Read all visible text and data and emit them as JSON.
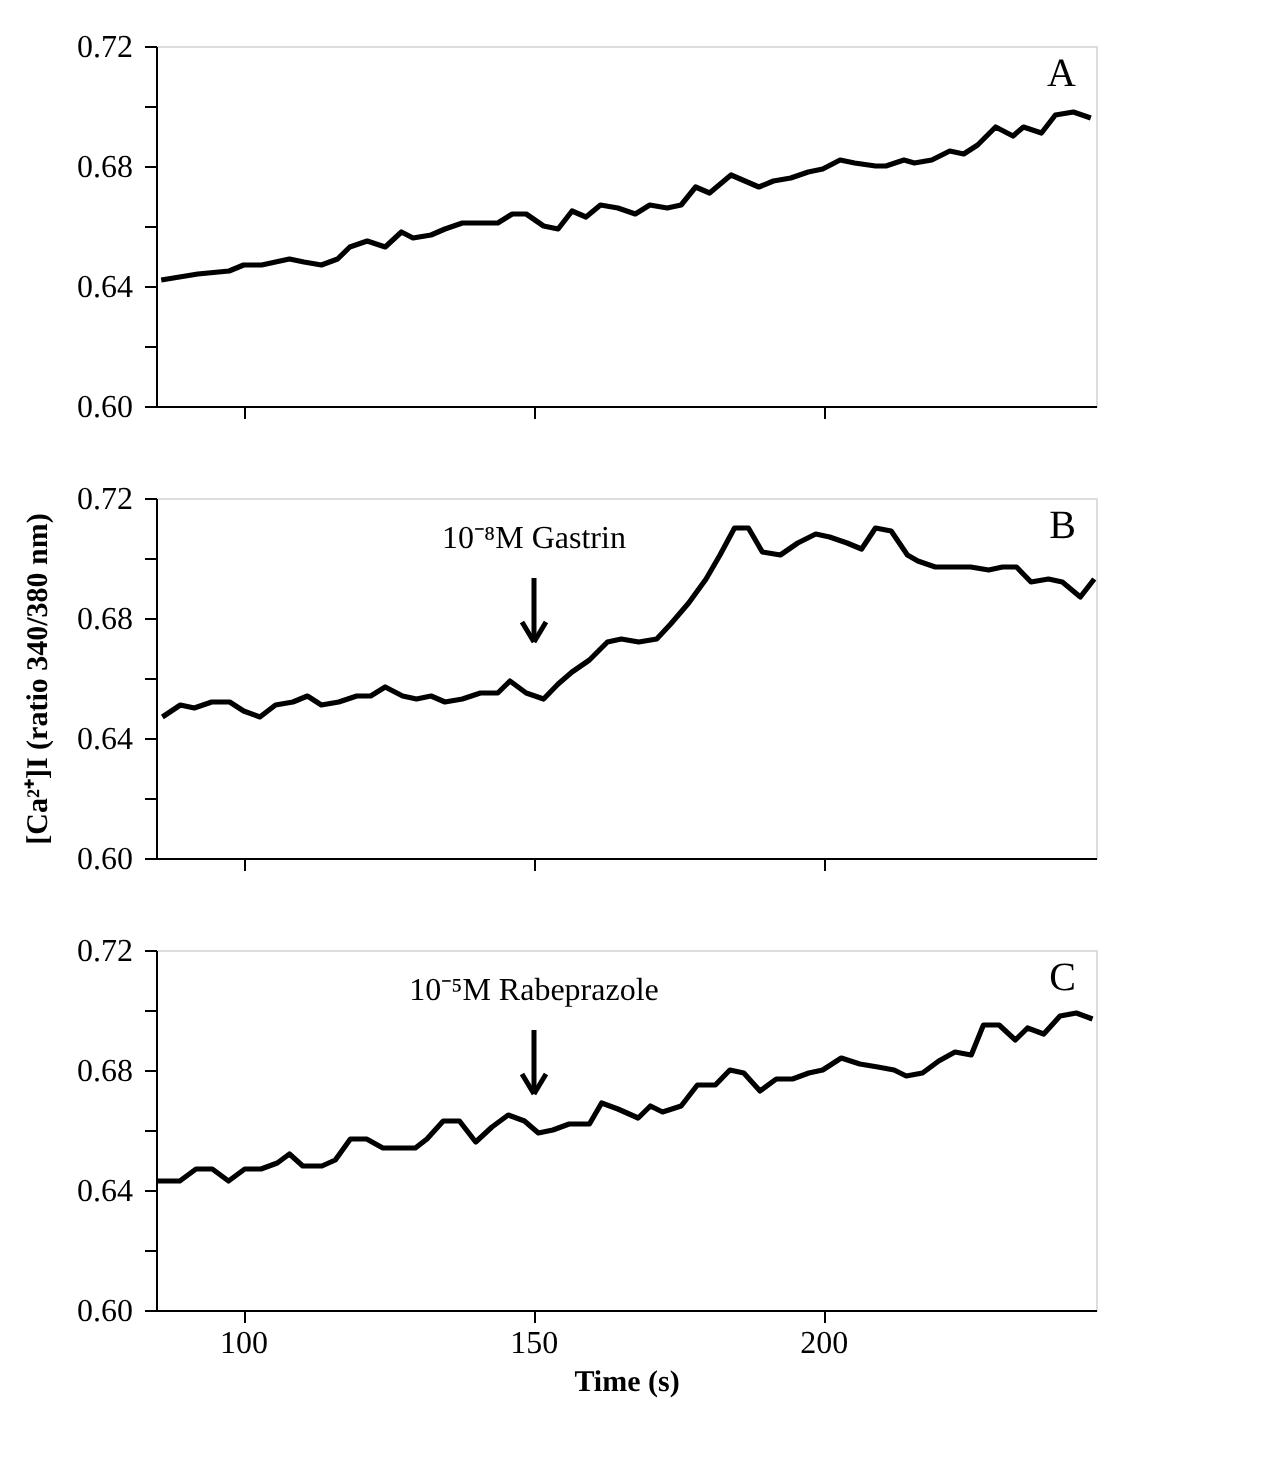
{
  "chart_data": [
    {
      "type": "line",
      "annotations": [
        "A"
      ],
      "xlim": [
        85,
        247
      ],
      "xticks": [
        100,
        150,
        200
      ],
      "ylim": [
        0.6,
        0.72
      ],
      "yticks": [
        {
          "value": 0.6,
          "label": "0.60"
        },
        {
          "value": 0.62,
          "label": null
        },
        {
          "value": 0.64,
          "label": "0.64"
        },
        {
          "value": 0.66,
          "label": null
        },
        {
          "value": 0.68,
          "label": "0.68"
        },
        {
          "value": 0.7,
          "label": null
        },
        {
          "value": 0.72,
          "label": "0.72"
        }
      ],
      "tick_labels": "y",
      "grid": false,
      "marker": "none",
      "line_style": "solid",
      "series": [
        {
          "color": "#000000",
          "x": [
            85.9,
            92.2,
            97.6,
            100.1,
            103.2,
            108.0,
            110.5,
            113.5,
            116.3,
            118.4,
            121.4,
            124.5,
            127.3,
            129.3,
            132.4,
            134.8,
            137.8,
            140.9,
            143.9,
            146.4,
            148.8,
            151.8,
            154.3,
            156.7,
            159.1,
            161.6,
            164.6,
            167.6,
            170.1,
            173.1,
            175.5,
            178.0,
            180.4,
            184.1,
            188.9,
            191.4,
            194.4,
            197.4,
            199.9,
            202.9,
            205.4,
            209.0,
            210.8,
            213.9,
            215.7,
            218.7,
            221.8,
            224.2,
            226.6,
            229.7,
            232.7,
            234.5,
            237.6,
            240.0,
            243.1,
            246.1
          ],
          "values": [
            0.642,
            0.644,
            0.645,
            0.647,
            0.647,
            0.649,
            0.648,
            0.647,
            0.649,
            0.653,
            0.655,
            0.653,
            0.658,
            0.656,
            0.657,
            0.659,
            0.661,
            0.661,
            0.661,
            0.664,
            0.664,
            0.66,
            0.659,
            0.665,
            0.663,
            0.667,
            0.666,
            0.664,
            0.667,
            0.666,
            0.667,
            0.673,
            0.671,
            0.677,
            0.673,
            0.675,
            0.676,
            0.678,
            0.679,
            0.682,
            0.681,
            0.68,
            0.68,
            0.682,
            0.681,
            0.682,
            0.685,
            0.684,
            0.687,
            0.693,
            0.69,
            0.693,
            0.691,
            0.697,
            0.698,
            0.696
          ]
        }
      ]
    },
    {
      "type": "line",
      "ylabel": "[Ca²⁺]I (ratio 340/380 nm)",
      "annotations": [
        "B",
        "10⁻⁸M Gastrin"
      ],
      "xlim": [
        85,
        247
      ],
      "xticks": [
        100,
        150,
        200
      ],
      "ylim": [
        0.6,
        0.72
      ],
      "yticks": [
        {
          "value": 0.6,
          "label": "0.60"
        },
        {
          "value": 0.62,
          "label": null
        },
        {
          "value": 0.64,
          "label": "0.64"
        },
        {
          "value": 0.66,
          "label": null
        },
        {
          "value": 0.68,
          "label": "0.68"
        },
        {
          "value": 0.7,
          "label": null
        },
        {
          "value": 0.72,
          "label": "0.72"
        }
      ],
      "tick_labels": "y",
      "grid": false,
      "marker": "none",
      "line_style": "solid",
      "series": [
        {
          "color": "#000000",
          "x": [
            86.1,
            89.2,
            91.6,
            94.6,
            97.7,
            100.1,
            102.9,
            105.6,
            108.6,
            111.1,
            113.5,
            116.5,
            119.6,
            122.0,
            124.5,
            127.5,
            129.9,
            132.4,
            134.8,
            137.8,
            140.9,
            143.9,
            146.0,
            148.8,
            151.8,
            154.3,
            156.7,
            159.7,
            162.8,
            165.2,
            168.2,
            171.3,
            173.7,
            176.8,
            179.8,
            182.2,
            184.7,
            187.1,
            189.5,
            192.6,
            195.6,
            198.7,
            201.1,
            204.1,
            206.6,
            209.0,
            211.7,
            214.5,
            216.3,
            219.3,
            222.4,
            225.4,
            228.5,
            230.9,
            233.3,
            235.8,
            238.8,
            241.2,
            244.3,
            246.7
          ],
          "values": [
            0.647,
            0.651,
            0.65,
            0.652,
            0.652,
            0.649,
            0.647,
            0.651,
            0.652,
            0.654,
            0.651,
            0.652,
            0.654,
            0.654,
            0.657,
            0.654,
            0.653,
            0.654,
            0.652,
            0.653,
            0.655,
            0.655,
            0.659,
            0.655,
            0.653,
            0.658,
            0.662,
            0.666,
            0.672,
            0.673,
            0.672,
            0.673,
            0.678,
            0.685,
            0.693,
            0.701,
            0.71,
            0.71,
            0.702,
            0.701,
            0.705,
            0.708,
            0.707,
            0.705,
            0.703,
            0.71,
            0.709,
            0.701,
            0.699,
            0.697,
            0.697,
            0.697,
            0.696,
            0.697,
            0.697,
            0.692,
            0.693,
            0.692,
            0.687,
            0.693
          ]
        }
      ]
    },
    {
      "type": "line",
      "xlabel": "Time (s)",
      "annotations": [
        "C",
        "10⁻⁵M Rabeprazole"
      ],
      "xlim": [
        85,
        247
      ],
      "xticks": [
        100,
        150,
        200
      ],
      "ylim": [
        0.6,
        0.72
      ],
      "yticks": [
        {
          "value": 0.6,
          "label": "0.60"
        },
        {
          "value": 0.62,
          "label": null
        },
        {
          "value": 0.64,
          "label": "0.64"
        },
        {
          "value": 0.66,
          "label": null
        },
        {
          "value": 0.68,
          "label": "0.68"
        },
        {
          "value": 0.7,
          "label": null
        },
        {
          "value": 0.72,
          "label": "0.72"
        }
      ],
      "grid": false,
      "marker": "none",
      "line_style": "solid",
      "series": [
        {
          "color": "#000000",
          "x": [
            85.2,
            89.1,
            91.9,
            94.7,
            97.5,
            100.3,
            103.1,
            105.9,
            108.0,
            110.3,
            113.6,
            115.9,
            118.5,
            121.3,
            124.1,
            126.9,
            129.7,
            131.7,
            134.5,
            137.3,
            140.1,
            142.9,
            145.7,
            148.5,
            150.9,
            153.4,
            156.2,
            159.7,
            161.8,
            164.6,
            168.1,
            170.2,
            172.3,
            175.5,
            178.3,
            181.4,
            183.9,
            186.3,
            189.1,
            191.9,
            194.7,
            197.5,
            199.9,
            203.1,
            206.3,
            209.4,
            212.2,
            214.3,
            217.1,
            219.9,
            222.7,
            225.5,
            227.6,
            230.3,
            233.1,
            235.2,
            238.0,
            240.8,
            243.6,
            246.4
          ],
          "values": [
            0.643,
            0.643,
            0.647,
            0.647,
            0.643,
            0.647,
            0.647,
            0.649,
            0.652,
            0.648,
            0.648,
            0.65,
            0.657,
            0.657,
            0.654,
            0.654,
            0.654,
            0.657,
            0.663,
            0.663,
            0.656,
            0.661,
            0.665,
            0.663,
            0.659,
            0.66,
            0.662,
            0.662,
            0.669,
            0.667,
            0.664,
            0.668,
            0.666,
            0.668,
            0.675,
            0.675,
            0.68,
            0.679,
            0.673,
            0.677,
            0.677,
            0.679,
            0.68,
            0.684,
            0.682,
            0.681,
            0.68,
            0.678,
            0.679,
            0.683,
            0.686,
            0.685,
            0.695,
            0.695,
            0.69,
            0.694,
            0.692,
            0.698,
            0.699,
            0.697
          ]
        }
      ]
    }
  ]
}
